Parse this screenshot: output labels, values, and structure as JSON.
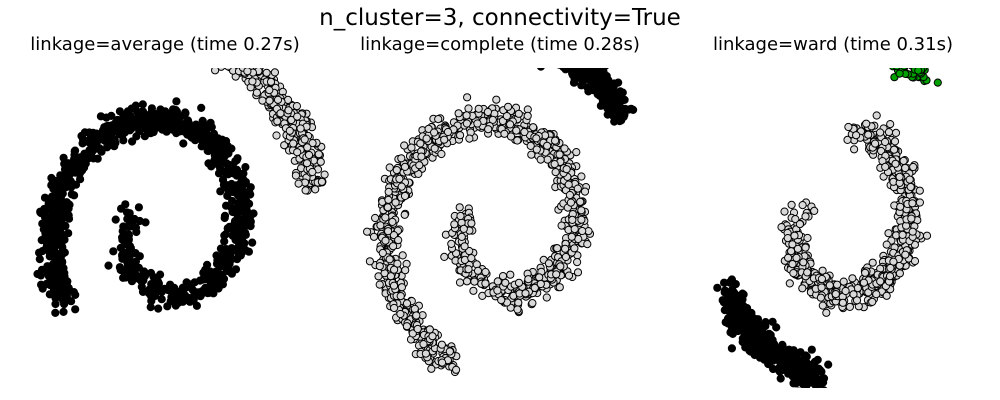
{
  "figure": {
    "suptitle": "n_cluster=3, connectivity=True"
  },
  "chart_data": [
    {
      "type": "scatter",
      "title": "linkage=average (time 0.27s)",
      "xlabel": "",
      "ylabel": "",
      "axes_visible": false,
      "xlim": [
        -13,
        13
      ],
      "ylim": [
        -11,
        11
      ],
      "grid": false,
      "cluster_colors": [
        "#000000",
        "#d9d9d9",
        "#00a000"
      ],
      "clusters": [
        {
          "label": 0,
          "color": "#000000",
          "t_range": [
            1.5,
            10.0
          ],
          "approx_points": 1000
        },
        {
          "label": 1,
          "color": "#d9d9d9",
          "t_range": [
            10.0,
            13.9
          ],
          "approx_points": 450
        },
        {
          "label": 2,
          "color": "#00a000",
          "t_range": [
            13.9,
            14.4
          ],
          "approx_points": 50
        }
      ]
    },
    {
      "type": "scatter",
      "title": "linkage=complete (time 0.28s)",
      "xlabel": "",
      "ylabel": "",
      "axes_visible": false,
      "xlim": [
        -13,
        13
      ],
      "ylim": [
        -11,
        11
      ],
      "grid": false,
      "cluster_colors": [
        "#000000",
        "#d9d9d9",
        "#00a000"
      ],
      "clusters": [
        {
          "label": 0,
          "color": "#d9d9d9",
          "t_range": [
            1.5,
            10.6
          ],
          "approx_points": 1100
        },
        {
          "label": 1,
          "color": "#000000",
          "t_range": [
            10.6,
            14.1
          ],
          "approx_points": 390
        },
        {
          "label": 2,
          "color": "#00a000",
          "t_range": [
            14.1,
            14.4
          ],
          "approx_points": 10
        }
      ]
    },
    {
      "type": "scatter",
      "title": "linkage=ward (time 0.31s)",
      "xlabel": "",
      "ylabel": "",
      "axes_visible": false,
      "xlim": [
        -13,
        13
      ],
      "ylim": [
        -11,
        11
      ],
      "grid": false,
      "cluster_colors": [
        "#000000",
        "#d9d9d9",
        "#00a000"
      ],
      "clusters": [
        {
          "label": 0,
          "color": "#d9d9d9",
          "t_range": [
            1.5,
            7.6
          ],
          "approx_points": 700
        },
        {
          "label": 1,
          "color": "#000000",
          "t_range": [
            7.6,
            10.9
          ],
          "approx_points": 430
        },
        {
          "label": 2,
          "color": "#00a000",
          "t_range": [
            10.9,
            14.4
          ],
          "approx_points": 370
        }
      ]
    }
  ]
}
